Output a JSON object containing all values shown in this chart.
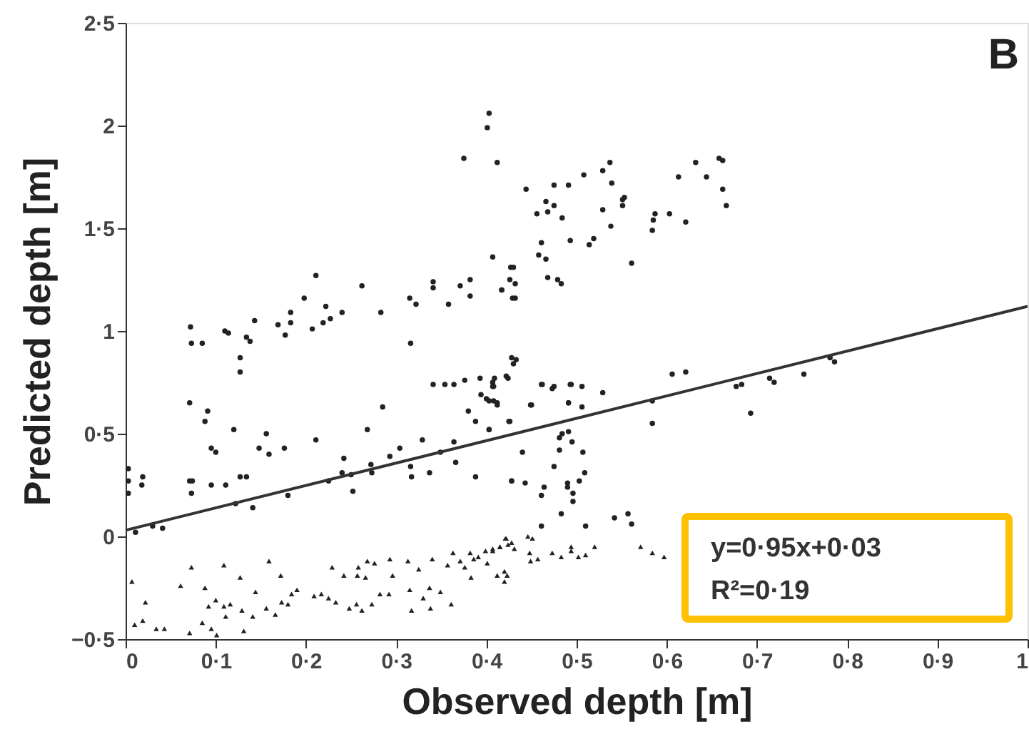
{
  "chart_data": {
    "type": "scatter",
    "xlabel": "Observed depth [m]",
    "ylabel": "Predicted depth [m]",
    "annotations": [
      "B",
      "y=0·95x+0·03",
      "R²=0·19"
    ],
    "xlim": [
      0,
      1
    ],
    "ylim": [
      -0.5,
      2.5
    ],
    "xticks": [
      {
        "value": 0,
        "label": "0"
      },
      {
        "value": 0.1,
        "label": "0·1"
      },
      {
        "value": 0.2,
        "label": "0·2"
      },
      {
        "value": 0.3,
        "label": "0·3"
      },
      {
        "value": 0.4,
        "label": "0·4"
      },
      {
        "value": 0.5,
        "label": "0·5"
      },
      {
        "value": 0.6,
        "label": "0·6"
      },
      {
        "value": 0.7,
        "label": "0·7"
      },
      {
        "value": 0.8,
        "label": "0·8"
      },
      {
        "value": 0.9,
        "label": "0·9"
      },
      {
        "value": 1,
        "label": "1"
      }
    ],
    "yticks": [
      {
        "value": -0.5,
        "label": "−0·5"
      },
      {
        "value": 0,
        "label": "0"
      },
      {
        "value": 0.5,
        "label": "0·5"
      },
      {
        "value": 1,
        "label": "1"
      },
      {
        "value": 1.5,
        "label": "1·5"
      },
      {
        "value": 2,
        "label": "2"
      },
      {
        "value": 2.5,
        "label": "2·5"
      }
    ],
    "grid": false,
    "series": [
      {
        "type": "scatter",
        "marker": "circle",
        "color": "#222222",
        "x": [
          0.072,
          0.073,
          0.085,
          0.11,
          0.114,
          0.134,
          0.138,
          0.143,
          0.127,
          0.169,
          0.177,
          0.183,
          0.183,
          0.198,
          0.207,
          0.211,
          0.222,
          0.219,
          0.227,
          0.24,
          0.262,
          0.283,
          0.315,
          0.322,
          0.316,
          0.341,
          0.341,
          0.358,
          0.371,
          0.382,
          0.382,
          0.375,
          0.403,
          0.401,
          0.412,
          0.407,
          0.417,
          0.429,
          0.444,
          0.456,
          0.466,
          0.468,
          0.475,
          0.475,
          0.491,
          0.484,
          0.508,
          0.529,
          0.537,
          0.539,
          0.529,
          0.551,
          0.553,
          0.551,
          0.538,
          0.493,
          0.514,
          0.519,
          0.461,
          0.458,
          0.466,
          0.427,
          0.43,
          0.468,
          0.479,
          0.483,
          0.426,
          0.432,
          0.417,
          0.432,
          0.561,
          0.584,
          0.585,
          0.587,
          0.603,
          0.621,
          0.613,
          0.632,
          0.644,
          0.658,
          0.662,
          0.662,
          0.666,
          0.407,
          0.407,
          0.424,
          0.43,
          0.433,
          0.403,
          0.412,
          0.425,
          0.45,
          0.461,
          0.473,
          0.493,
          0.506,
          0.491,
          0.506,
          0.529,
          0.584,
          0.584,
          0.606,
          0.621,
          0.677,
          0.683,
          0.693,
          0.714,
          0.719,
          0.752,
          0.786,
          0.781,
          0.003,
          0.003,
          0.003,
          0.019,
          0.018,
          0.011,
          0.03,
          0.041,
          0.071,
          0.071,
          0.074,
          0.073,
          0.088,
          0.091,
          0.095,
          0.1,
          0.095,
          0.111,
          0.12,
          0.127,
          0.127,
          0.134,
          0.122,
          0.141,
          0.148,
          0.156,
          0.159,
          0.176,
          0.18,
          0.211,
          0.225,
          0.242,
          0.24,
          0.25,
          0.252,
          0.268,
          0.272,
          0.273,
          0.285,
          0.293,
          0.304,
          0.316,
          0.317,
          0.329,
          0.337,
          0.341,
          0.354,
          0.364,
          0.349,
          0.364,
          0.366,
          0.38,
          0.376,
          0.388,
          0.388,
          0.393,
          0.394,
          0.4,
          0.403,
          0.409,
          0.412,
          0.422,
          0.428,
          0.428,
          0.408,
          0.408,
          0.403,
          0.426,
          0.44,
          0.449,
          0.462,
          0.475,
          0.494,
          0.491,
          0.481,
          0.484,
          0.491,
          0.495,
          0.481,
          0.507,
          0.475,
          0.509,
          0.428,
          0.443,
          0.464,
          0.461,
          0.49,
          0.49,
          0.503,
          0.496,
          0.496,
          0.483,
          0.461,
          0.51,
          0.542,
          0.557,
          0.561
        ],
        "values": [
          1.02,
          0.94,
          0.94,
          1.0,
          0.99,
          0.97,
          0.95,
          1.05,
          0.8,
          1.03,
          0.98,
          1.09,
          1.04,
          1.16,
          1.01,
          1.27,
          1.12,
          1.04,
          1.06,
          1.09,
          1.22,
          1.09,
          1.16,
          1.13,
          0.94,
          1.24,
          1.21,
          1.13,
          1.22,
          1.25,
          1.17,
          1.84,
          2.06,
          1.99,
          1.82,
          1.36,
          1.2,
          1.16,
          1.69,
          1.57,
          1.63,
          1.58,
          1.61,
          1.71,
          1.71,
          1.55,
          1.76,
          1.78,
          1.82,
          1.72,
          1.59,
          1.64,
          1.65,
          1.61,
          1.51,
          1.44,
          1.42,
          1.45,
          1.43,
          1.37,
          1.35,
          1.31,
          1.31,
          1.26,
          1.25,
          1.23,
          1.25,
          1.23,
          1.2,
          1.16,
          1.33,
          1.49,
          1.54,
          1.57,
          1.57,
          1.53,
          1.75,
          1.82,
          1.75,
          1.84,
          1.83,
          1.69,
          1.61,
          0.75,
          0.73,
          0.77,
          0.84,
          0.86,
          0.66,
          0.64,
          0.56,
          0.64,
          0.74,
          0.72,
          0.74,
          0.73,
          0.65,
          0.63,
          0.7,
          0.66,
          0.55,
          0.79,
          0.8,
          0.73,
          0.74,
          0.6,
          0.77,
          0.75,
          0.79,
          0.85,
          0.87,
          0.33,
          0.27,
          0.21,
          0.29,
          0.25,
          0.02,
          0.05,
          0.04,
          0.65,
          0.27,
          0.27,
          0.21,
          0.56,
          0.61,
          0.43,
          0.41,
          0.25,
          0.25,
          0.52,
          0.87,
          0.29,
          0.29,
          0.16,
          0.14,
          0.43,
          0.5,
          0.4,
          0.43,
          0.2,
          0.47,
          0.27,
          0.38,
          0.31,
          0.3,
          0.22,
          0.52,
          0.35,
          0.31,
          0.63,
          0.39,
          0.43,
          0.34,
          0.29,
          0.47,
          0.31,
          0.74,
          0.74,
          0.74,
          0.41,
          0.46,
          0.36,
          0.61,
          0.76,
          0.56,
          0.29,
          0.77,
          0.69,
          0.67,
          0.52,
          0.77,
          0.65,
          0.78,
          0.87,
          0.27,
          0.73,
          0.66,
          0.52,
          0.56,
          0.41,
          0.64,
          0.74,
          0.73,
          0.74,
          0.65,
          0.48,
          0.5,
          0.51,
          0.46,
          0.42,
          0.41,
          0.34,
          0.31,
          0.27,
          0.26,
          0.24,
          0.2,
          0.26,
          0.24,
          0.27,
          0.21,
          0.17,
          0.11,
          0.05,
          0.05,
          0.09,
          0.11,
          0.06
        ]
      },
      {
        "type": "scatter",
        "marker": "triangle",
        "color": "#222222",
        "x": [
          0.007,
          0.01,
          0.019,
          0.022,
          0.034,
          0.043,
          0.061,
          0.071,
          0.073,
          0.088,
          0.085,
          0.092,
          0.095,
          0.101,
          0.1,
          0.109,
          0.116,
          0.109,
          0.111,
          0.127,
          0.129,
          0.131,
          0.144,
          0.141,
          0.156,
          0.159,
          0.166,
          0.172,
          0.173,
          0.18,
          0.184,
          0.19,
          0.209,
          0.217,
          0.225,
          0.229,
          0.233,
          0.242,
          0.248,
          0.256,
          0.262,
          0.257,
          0.266,
          0.258,
          0.268,
          0.276,
          0.273,
          0.282,
          0.293,
          0.296,
          0.292,
          0.313,
          0.315,
          0.317,
          0.325,
          0.33,
          0.338,
          0.337,
          0.349,
          0.34,
          0.361,
          0.357,
          0.363,
          0.371,
          0.376,
          0.382,
          0.386,
          0.391,
          0.383,
          0.399,
          0.407,
          0.415,
          0.401,
          0.412,
          0.42,
          0.422,
          0.428,
          0.407,
          0.415,
          0.421,
          0.424,
          0.42,
          0.423,
          0.431,
          0.446,
          0.451,
          0.448,
          0.457,
          0.449,
          0.473,
          0.483,
          0.494,
          0.494,
          0.502,
          0.51,
          0.52,
          0.571,
          0.584,
          0.597
        ],
        "values": [
          -0.22,
          -0.43,
          -0.41,
          -0.32,
          -0.45,
          -0.45,
          -0.24,
          -0.47,
          -0.15,
          -0.25,
          -0.42,
          -0.34,
          -0.45,
          -0.48,
          -0.31,
          -0.34,
          -0.33,
          -0.14,
          -0.39,
          -0.2,
          -0.36,
          -0.46,
          -0.27,
          -0.39,
          -0.35,
          -0.12,
          -0.38,
          -0.19,
          -0.32,
          -0.33,
          -0.28,
          -0.26,
          -0.29,
          -0.28,
          -0.3,
          -0.15,
          -0.32,
          -0.19,
          -0.35,
          -0.33,
          -0.36,
          -0.19,
          -0.2,
          -0.15,
          -0.12,
          -0.13,
          -0.33,
          -0.28,
          -0.11,
          -0.19,
          -0.28,
          -0.12,
          -0.26,
          -0.36,
          -0.16,
          -0.3,
          -0.35,
          -0.25,
          -0.27,
          -0.11,
          -0.33,
          -0.14,
          -0.08,
          -0.12,
          -0.15,
          -0.08,
          -0.11,
          -0.1,
          -0.2,
          -0.07,
          -0.07,
          -0.05,
          -0.13,
          -0.19,
          -0.22,
          -0.01,
          -0.03,
          -0.06,
          -0.05,
          -0.01,
          -0.04,
          -0.17,
          -0.19,
          -0.06,
          0.0,
          -0.01,
          -0.08,
          -0.11,
          -0.12,
          -0.08,
          -0.1,
          -0.05,
          -0.07,
          -0.1,
          -0.09,
          -0.05,
          -0.05,
          -0.08,
          -0.1
        ]
      },
      {
        "type": "line",
        "color": "#333333",
        "x": [
          0,
          1
        ],
        "values": [
          0.03,
          1.12
        ]
      }
    ]
  }
}
